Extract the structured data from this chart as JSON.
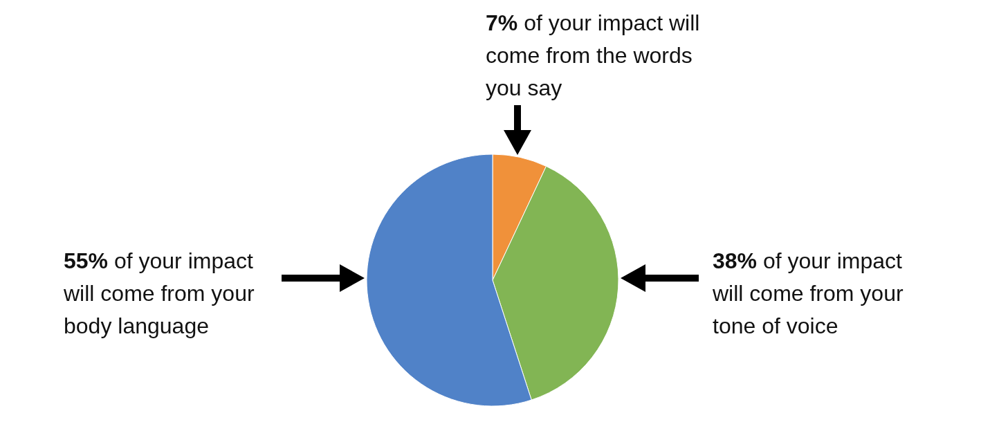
{
  "chart_data": {
    "type": "pie",
    "categories": [
      "of your impact will come from the words you say",
      "of your impact will come from your tone of voice",
      "of your impact will come from your body language"
    ],
    "values": [
      7,
      38,
      55
    ],
    "value_labels": [
      "7%",
      "38%",
      "55%"
    ],
    "colors": [
      "#f0913a",
      "#82b554",
      "#5082c8"
    ],
    "legend": false
  }
}
